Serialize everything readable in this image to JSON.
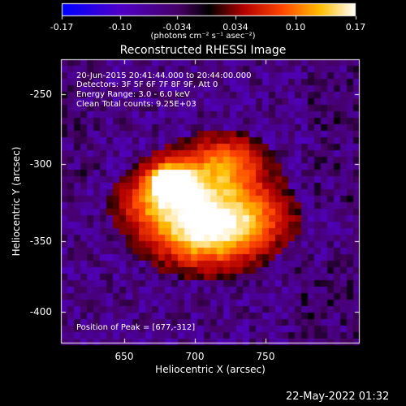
{
  "colorbar": {
    "ticks": [
      "-0.17",
      "-0.10",
      "-0.034",
      "0.034",
      "0.10",
      "0.17"
    ],
    "units": "(photons cm⁻² s⁻¹ asec⁻²)"
  },
  "plot": {
    "title": "Reconstructed RHESSI Image",
    "annotations": [
      "20-Jun-2015 20:41:44.000 to 20:44:00.000",
      "Detectors: 3F 5F 6F 7F 8F 9F, Att 0",
      "Energy Range: 3.0 - 6.0 keV",
      "Clean     Total counts: 9.25E+03"
    ],
    "peak_text": "Position of Peak = [677,-312]",
    "x_ticks": [
      "650",
      "700",
      "750"
    ],
    "y_ticks": [
      "-250",
      "-300",
      "-350",
      "-400"
    ],
    "xlabel": "Heliocentric X (arcsec)",
    "ylabel": "Heliocentric Y (arcsec)"
  },
  "footer": {
    "date": "22-May-2022 01:32"
  }
}
